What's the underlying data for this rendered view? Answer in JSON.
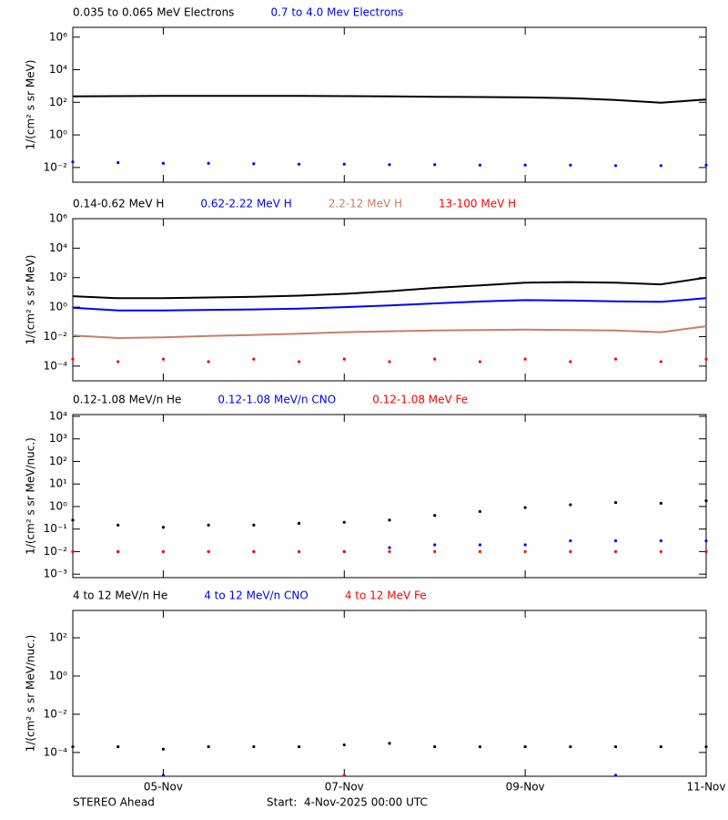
{
  "chart_data": [
    {
      "type": "line",
      "log_y": true,
      "x": [
        4,
        4.5,
        5,
        5.5,
        6,
        6.5,
        7,
        7.5,
        8,
        8.5,
        9,
        9.5,
        10,
        10.5,
        11
      ],
      "xlim": [
        4,
        11
      ],
      "xticks": [
        5,
        7,
        9,
        11
      ],
      "ylabel": "1/(cm² s sr MeV)",
      "ylim": [
        0.00125,
        4000000
      ],
      "yticks": [
        {
          "value": 0.01,
          "label": "10⁻²"
        },
        {
          "value": 1,
          "label": "10⁰"
        },
        {
          "value": 100,
          "label": "10²"
        },
        {
          "value": 10000,
          "label": "10⁴"
        },
        {
          "value": 1000000,
          "label": "10⁶"
        }
      ],
      "series": [
        {
          "name": "0.035 to 0.065 MeV Electrons",
          "color": "#000000",
          "marker": "line",
          "values": [
            230,
            240,
            245,
            245,
            250,
            250,
            240,
            230,
            220,
            210,
            200,
            180,
            140,
            95,
            150
          ]
        },
        {
          "name": "0.7 to 4.0 Mev Electrons",
          "color": "#0000ff",
          "marker": "dot",
          "values": [
            0.022,
            0.02,
            0.018,
            0.018,
            0.017,
            0.016,
            0.016,
            0.015,
            0.015,
            0.014,
            0.014,
            0.014,
            0.013,
            0.013,
            0.014
          ]
        }
      ]
    },
    {
      "type": "line",
      "log_y": true,
      "x": [
        4,
        4.5,
        5,
        5.5,
        6,
        6.5,
        7,
        7.5,
        8,
        8.5,
        9,
        9.5,
        10,
        10.5,
        11
      ],
      "xlim": [
        4,
        11
      ],
      "xticks": [
        5,
        7,
        9,
        11
      ],
      "ylabel": "1/(cm² s sr MeV)",
      "ylim": [
        1e-05,
        1000000
      ],
      "yticks": [
        {
          "value": 0.0001,
          "label": "10⁻⁴"
        },
        {
          "value": 0.01,
          "label": "10⁻²"
        },
        {
          "value": 1,
          "label": "10⁰"
        },
        {
          "value": 100,
          "label": "10²"
        },
        {
          "value": 10000,
          "label": "10⁴"
        },
        {
          "value": 1000000,
          "label": "10⁶"
        }
      ],
      "series": [
        {
          "name": "0.14-0.62 MeV H",
          "color": "#000000",
          "marker": "line",
          "values": [
            5.5,
            4,
            4,
            4.5,
            5,
            6,
            8,
            12,
            20,
            30,
            45,
            50,
            45,
            35,
            100
          ]
        },
        {
          "name": "0.62-2.22 MeV H",
          "color": "#0000ff",
          "marker": "line",
          "values": [
            0.9,
            0.6,
            0.6,
            0.65,
            0.7,
            0.8,
            1.0,
            1.3,
            1.8,
            2.4,
            3,
            2.8,
            2.5,
            2.3,
            4
          ]
        },
        {
          "name": "2.2-12 MeV H",
          "color": "#c87f64",
          "marker": "line",
          "values": [
            0.012,
            0.008,
            0.009,
            0.011,
            0.013,
            0.016,
            0.02,
            0.023,
            0.026,
            0.028,
            0.03,
            0.028,
            0.026,
            0.02,
            0.05
          ]
        },
        {
          "name": "13-100 MeV H",
          "color": "#ff0000",
          "marker": "dot",
          "values": [
            0.0003,
            0.0002,
            0.0003,
            0.0002,
            0.0003,
            0.0002,
            0.0003,
            0.0002,
            0.0003,
            0.0002,
            0.0003,
            0.0002,
            0.0003,
            0.0002,
            0.0003
          ]
        }
      ]
    },
    {
      "type": "line",
      "log_y": true,
      "x": [
        4,
        4.5,
        5,
        5.5,
        6,
        6.5,
        7,
        7.5,
        8,
        8.5,
        9,
        9.5,
        10,
        10.5,
        11
      ],
      "xlim": [
        4,
        11
      ],
      "xticks": [
        5,
        7,
        9,
        11
      ],
      "ylabel": "1/(cm² s sr MeV/nuc.)",
      "ylim": [
        0.0007,
        12000
      ],
      "yticks": [
        {
          "value": 0.001,
          "label": "10⁻³"
        },
        {
          "value": 0.01,
          "label": "10⁻²"
        },
        {
          "value": 0.1,
          "label": "10⁻¹"
        },
        {
          "value": 1,
          "label": "10⁰"
        },
        {
          "value": 10,
          "label": "10¹"
        },
        {
          "value": 100,
          "label": "10²"
        },
        {
          "value": 1000,
          "label": "10³"
        },
        {
          "value": 10000,
          "label": "10⁴"
        }
      ],
      "series": [
        {
          "name": "0.12-1.08 MeV/n He",
          "color": "#000000",
          "marker": "dot",
          "values": [
            0.25,
            0.15,
            0.12,
            0.15,
            0.15,
            0.18,
            0.2,
            0.25,
            0.4,
            0.6,
            0.9,
            1.2,
            1.5,
            1.4,
            1.8
          ]
        },
        {
          "name": "0.12-1.08 MeV/n CNO",
          "color": "#0000ff",
          "marker": "dot",
          "values": [
            0.01,
            0.01,
            0.01,
            0.01,
            0.01,
            0.01,
            0.01,
            0.015,
            0.02,
            0.02,
            0.02,
            0.03,
            0.03,
            0.03,
            0.03
          ]
        },
        {
          "name": "0.12-1.08 MeV Fe",
          "color": "#ff0000",
          "marker": "dot",
          "values": [
            0.01,
            0.01,
            0.01,
            0.01,
            0.01,
            0.01,
            0.01,
            0.01,
            0.01,
            0.01,
            0.01,
            0.01,
            0.01,
            0.01,
            0.01
          ]
        }
      ]
    },
    {
      "type": "line",
      "log_y": true,
      "x": [
        4,
        4.5,
        5,
        5.5,
        6,
        6.5,
        7,
        7.5,
        8,
        8.5,
        9,
        9.5,
        10,
        10.5,
        11
      ],
      "xlim": [
        4,
        11
      ],
      "xticks": [
        {
          "value": 5,
          "label": "05-Nov"
        },
        {
          "value": 7,
          "label": "07-Nov"
        },
        {
          "value": 9,
          "label": "09-Nov"
        },
        {
          "value": 11,
          "label": "11-Nov"
        }
      ],
      "ylabel": "1/(cm² s sr MeV/nuc.)",
      "ylim": [
        5.7e-06,
        2700
      ],
      "yticks": [
        {
          "value": 0.0001,
          "label": "10⁻⁴"
        },
        {
          "value": 0.01,
          "label": "10⁻²"
        },
        {
          "value": 1,
          "label": "10⁰"
        },
        {
          "value": 100,
          "label": "10²"
        }
      ],
      "series": [
        {
          "name": "4 to 12 MeV/n He",
          "color": "#000000",
          "marker": "dot",
          "values": [
            0.0002,
            0.0002,
            0.00015,
            0.0002,
            0.0002,
            0.0002,
            0.00025,
            0.0003,
            0.0002,
            0.0002,
            0.0002,
            0.0002,
            0.0002,
            0.0002,
            0.0002
          ]
        },
        {
          "name": "4 to 12 MeV/n CNO",
          "color": "#0000ff",
          "marker": "dot",
          "values": [
            null,
            null,
            6.5e-06,
            null,
            null,
            null,
            null,
            null,
            null,
            null,
            null,
            null,
            6.5e-06,
            null,
            null
          ]
        },
        {
          "name": "4 to 12 MeV Fe",
          "color": "#ff0000",
          "marker": "dot",
          "values": [
            null,
            null,
            null,
            null,
            null,
            null,
            6.5e-06,
            null,
            null,
            null,
            null,
            null,
            null,
            null,
            null
          ]
        }
      ]
    }
  ],
  "footer": {
    "left": "STEREO Ahead",
    "right": "Start:  4-Nov-2025 00:00 UTC"
  }
}
